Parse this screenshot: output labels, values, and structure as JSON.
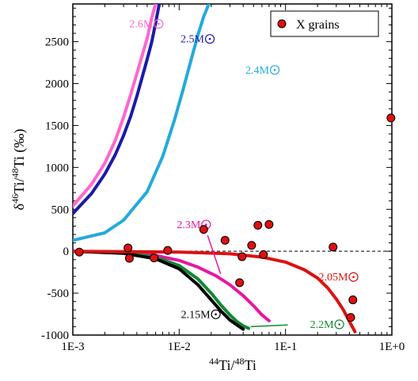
{
  "chart_data": {
    "type": "scatter",
    "xscale": "log",
    "xlim": [
      0.001,
      1
    ],
    "ylim": [
      -1000,
      2950
    ],
    "x_ticks": [
      "1E-3",
      "1E-2",
      "1E-1",
      "1E+0"
    ],
    "y_ticks": [
      -1000,
      -500,
      0,
      500,
      1000,
      1500,
      2000,
      2500
    ],
    "xlabel": {
      "sup1": "44",
      "base1": "Ti/",
      "sup2": "48",
      "base2": "Ti"
    },
    "ylabel": {
      "prefix": "δ",
      "sup1": "46",
      "base1": "Ti/",
      "sup2": "48",
      "base2": "Ti (‰)"
    },
    "legend": {
      "label": "X grains",
      "position": "top-right"
    },
    "reference_line": {
      "y": 0,
      "style": "dashed"
    },
    "points": {
      "name": "X grains",
      "color": "#dd1111",
      "data": [
        {
          "x": 0.00115,
          "y": -10
        },
        {
          "x": 0.0033,
          "y": 40
        },
        {
          "x": 0.0034,
          "y": -85
        },
        {
          "x": 0.0058,
          "y": -80
        },
        {
          "x": 0.0078,
          "y": 10
        },
        {
          "x": 0.017,
          "y": 260
        },
        {
          "x": 0.027,
          "y": 130
        },
        {
          "x": 0.037,
          "y": -375
        },
        {
          "x": 0.039,
          "y": -65
        },
        {
          "x": 0.048,
          "y": 70
        },
        {
          "x": 0.055,
          "y": 310
        },
        {
          "x": 0.062,
          "y": -40
        },
        {
          "x": 0.07,
          "y": 320
        },
        {
          "x": 0.28,
          "y": 50
        },
        {
          "x": 0.41,
          "y": -790
        },
        {
          "x": 0.43,
          "y": -580
        },
        {
          "x": 0.98,
          "y": 1590
        }
      ]
    },
    "series": [
      {
        "name": "2.6M",
        "color": "#ff66cc",
        "label_pos": {
          "x": 0.0034,
          "y": 2670
        },
        "x": [
          0.001,
          0.0015,
          0.002,
          0.0025,
          0.003,
          0.0035,
          0.004,
          0.0045,
          0.005,
          0.0055,
          0.006
        ],
        "y": [
          540,
          800,
          1050,
          1320,
          1600,
          1870,
          2120,
          2340,
          2540,
          2780,
          2950
        ]
      },
      {
        "name": "2.5M",
        "color": "#1a1aaa",
        "label_pos": {
          "x": 0.0103,
          "y": 2490
        },
        "x": [
          0.001,
          0.0015,
          0.002,
          0.0025,
          0.003,
          0.0035,
          0.004,
          0.0045,
          0.005,
          0.0055,
          0.006,
          0.0065
        ],
        "y": [
          450,
          690,
          920,
          1150,
          1380,
          1610,
          1850,
          2080,
          2290,
          2490,
          2720,
          2950
        ]
      },
      {
        "name": "2.4M",
        "color": "#22aadd",
        "label_pos": {
          "x": 0.042,
          "y": 2120
        },
        "x": [
          0.001,
          0.002,
          0.003,
          0.005,
          0.007,
          0.009,
          0.011,
          0.013,
          0.015,
          0.017,
          0.019
        ],
        "y": [
          130,
          220,
          370,
          710,
          1130,
          1560,
          1950,
          2290,
          2580,
          2800,
          2950
        ]
      },
      {
        "name": "2.3M",
        "color": "#e8179f",
        "label_pos": {
          "x": 0.0095,
          "y": 275
        },
        "x": [
          0.001,
          0.003,
          0.006,
          0.01,
          0.015,
          0.022,
          0.03,
          0.04,
          0.05,
          0.06,
          0.07
        ],
        "y": [
          0,
          -15,
          -50,
          -110,
          -190,
          -290,
          -400,
          -530,
          -650,
          -760,
          -830
        ]
      },
      {
        "name": "2.2M",
        "color": "#118833",
        "label_pos": {
          "x": 0.17,
          "y": -915
        },
        "x": [
          0.001,
          0.003,
          0.006,
          0.01,
          0.015,
          0.02,
          0.025,
          0.03,
          0.035,
          0.04,
          0.045
        ],
        "y": [
          0,
          -20,
          -70,
          -170,
          -330,
          -500,
          -650,
          -760,
          -840,
          -890,
          -920
        ]
      },
      {
        "name": "2.15M",
        "color": "#000000",
        "label_pos": {
          "x": 0.0104,
          "y": -795
        },
        "x": [
          0.001,
          0.003,
          0.006,
          0.01,
          0.015,
          0.02,
          0.025,
          0.03,
          0.035,
          0.04
        ],
        "y": [
          0,
          -25,
          -90,
          -210,
          -400,
          -580,
          -720,
          -820,
          -880,
          -930
        ]
      },
      {
        "name": "2.05M",
        "color": "#dd1111",
        "label_pos": {
          "x": 0.205,
          "y": -350
        },
        "x": [
          0.001,
          0.01,
          0.03,
          0.06,
          0.1,
          0.15,
          0.2,
          0.25,
          0.3,
          0.35,
          0.4,
          0.45
        ],
        "y": [
          0,
          -10,
          -30,
          -70,
          -130,
          -220,
          -320,
          -440,
          -570,
          -700,
          -840,
          -960
        ]
      }
    ]
  }
}
